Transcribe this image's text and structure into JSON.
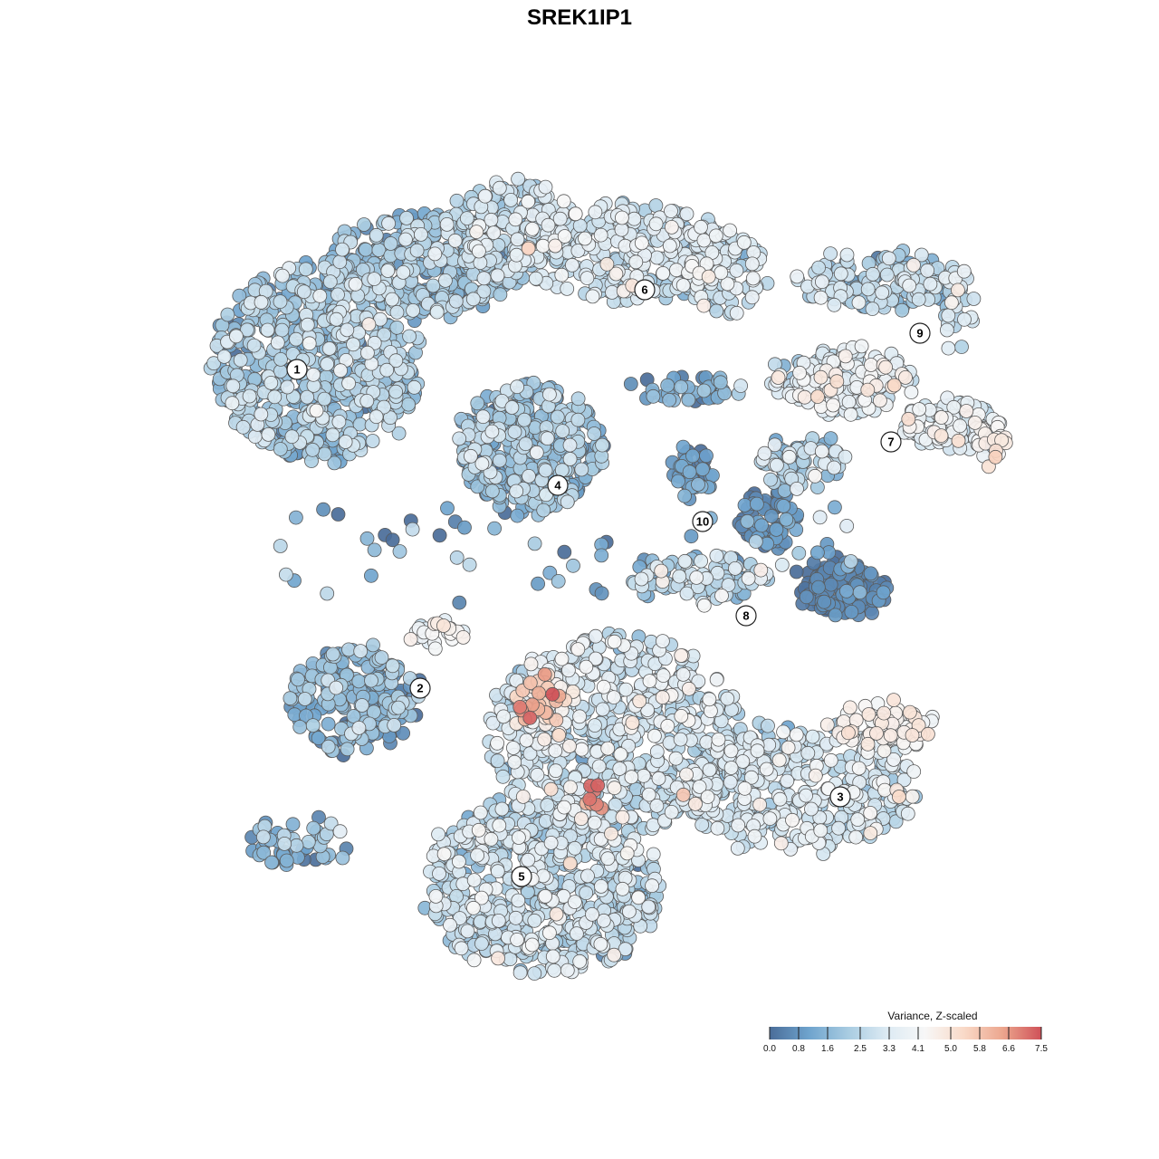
{
  "chart_data": {
    "type": "scatter",
    "title": "SREK1IP1",
    "color_scale": {
      "title": "Variance, Z-scaled",
      "min": 0.0,
      "max": 7.5,
      "ticks": [
        "0.0",
        "0.8",
        "1.6",
        "2.5",
        "3.3",
        "4.1",
        "5.0",
        "5.8",
        "6.6",
        "7.5"
      ],
      "colors": [
        "#4a6d99",
        "#6ea3cd",
        "#a7cbe1",
        "#dceaf3",
        "#f7f7f7",
        "#f9dac8",
        "#eca68e",
        "#cf5158"
      ]
    },
    "clusters": [
      {
        "id": "1",
        "x": -3.9,
        "y": 2.9,
        "value": 2.0
      },
      {
        "id": "2",
        "x": -2.2,
        "y": -1.5,
        "value": 3.6
      },
      {
        "id": "3",
        "x": 3.6,
        "y": -3.0,
        "value": 3.6
      },
      {
        "id": "4",
        "x": -0.3,
        "y": 1.3,
        "value": 1.8
      },
      {
        "id": "5",
        "x": -0.8,
        "y": -4.1,
        "value": 2.8
      },
      {
        "id": "6",
        "x": 0.9,
        "y": 4.0,
        "value": 2.9
      },
      {
        "id": "7",
        "x": 4.3,
        "y": 1.9,
        "value": 3.3
      },
      {
        "id": "8",
        "x": 2.3,
        "y": -0.5,
        "value": 1.0
      },
      {
        "id": "9",
        "x": 4.7,
        "y": 3.4,
        "value": 2.3
      },
      {
        "id": "10",
        "x": 1.7,
        "y": 0.8,
        "value": 0.9
      }
    ]
  }
}
